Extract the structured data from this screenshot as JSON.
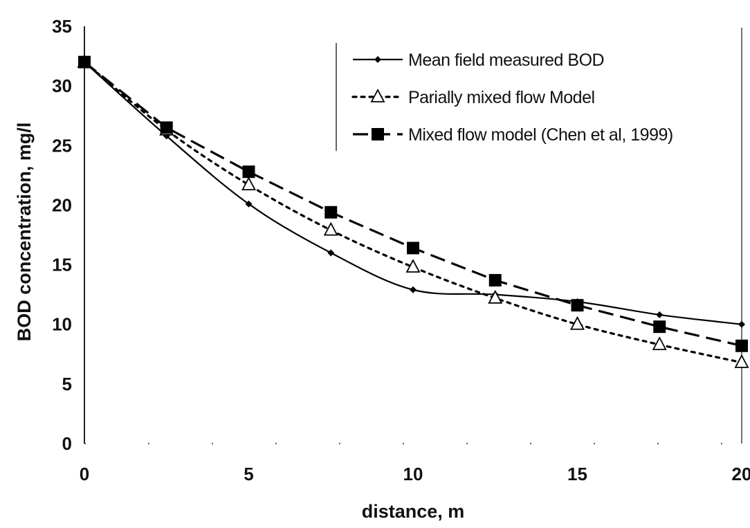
{
  "chart_data": {
    "type": "line",
    "xlabel": "distance, m",
    "ylabel": "BOD concentration, mg/l",
    "xlim": [
      0,
      20
    ],
    "ylim": [
      0,
      35
    ],
    "x_ticks": [
      "0",
      "5",
      "10",
      "15",
      "20"
    ],
    "y_ticks": [
      "0",
      "5",
      "10",
      "15",
      "20",
      "25",
      "30",
      "35"
    ],
    "grid": false,
    "legend_position": "top-right",
    "series": [
      {
        "name": "Mean field measured BOD",
        "style": "solid",
        "marker": "small-diamond",
        "color": "#000000",
        "x": [
          0,
          2.5,
          5,
          7.5,
          10,
          12.5,
          15,
          17.5,
          20
        ],
        "y": [
          32,
          25.8,
          20.1,
          16.0,
          12.9,
          12.5,
          11.9,
          10.8,
          10.0
        ]
      },
      {
        "name": "Parially mixed flow Model",
        "style": "dotted",
        "marker": "open-triangle",
        "color": "#000000",
        "x": [
          0,
          2.5,
          5,
          7.5,
          10,
          12.5,
          15,
          17.5,
          20
        ],
        "y": [
          32,
          26.3,
          21.7,
          17.9,
          14.8,
          12.2,
          10.0,
          8.3,
          6.8
        ]
      },
      {
        "name": "Mixed flow model (Chen et al, 1999)",
        "style": "dashed",
        "marker": "filled-square",
        "color": "#000000",
        "x": [
          0,
          2.5,
          5,
          7.5,
          10,
          12.5,
          15,
          17.5,
          20
        ],
        "y": [
          32,
          26.5,
          22.8,
          19.4,
          16.4,
          13.7,
          11.6,
          9.8,
          8.2
        ]
      }
    ]
  }
}
